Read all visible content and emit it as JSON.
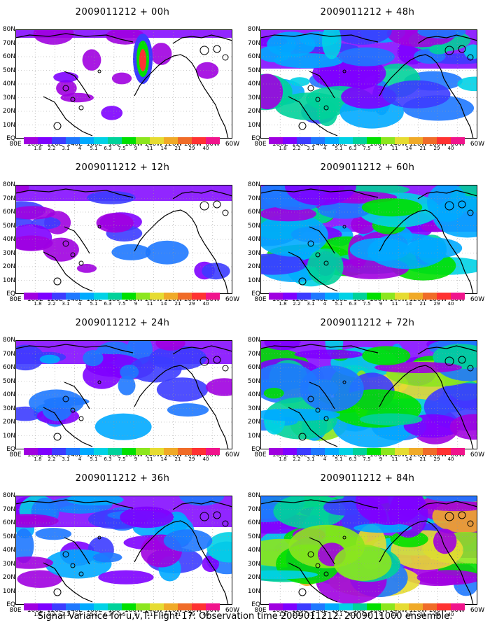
{
  "footer": "Signal Variance for u,v,T. Flight 17. Observation time 2009011212. 2009011000 ensemble.",
  "colorbar": {
    "labels": [
      "1.8",
      "2.2",
      "3.1",
      "4",
      "5.1",
      "6.3",
      "7.5",
      "9",
      "11",
      "14",
      "21",
      "29",
      "40"
    ],
    "colors": [
      "#a000e0",
      "#7e00ff",
      "#3c3cff",
      "#1e78ff",
      "#00aaff",
      "#00d2e6",
      "#00d29a",
      "#00e000",
      "#8ce61e",
      "#e6dc32",
      "#f0aa28",
      "#f06c28",
      "#ff3232",
      "#f0148c"
    ]
  },
  "axes": {
    "lat_labels": [
      "80N",
      "70N",
      "60N",
      "50N",
      "40N",
      "30N",
      "20N",
      "10N",
      "EQ"
    ],
    "lon_labels": [
      "80E",
      "100E",
      "120E",
      "140E",
      "160E",
      "180",
      "160W",
      "140W",
      "120W",
      "100W",
      "80W",
      "60W"
    ]
  },
  "chart_data": [
    {
      "type": "heatmap",
      "title": "2009011212 + 00h",
      "lead_hours": 0,
      "x_range": [
        "80E",
        "60W"
      ],
      "y_range": [
        "EQ",
        "80N"
      ]
    },
    {
      "type": "heatmap",
      "title": "2009011212 + 12h",
      "lead_hours": 12,
      "x_range": [
        "80E",
        "60W"
      ],
      "y_range": [
        "EQ",
        "80N"
      ]
    },
    {
      "type": "heatmap",
      "title": "2009011212 + 24h",
      "lead_hours": 24,
      "x_range": [
        "80E",
        "60W"
      ],
      "y_range": [
        "EQ",
        "80N"
      ]
    },
    {
      "type": "heatmap",
      "title": "2009011212 + 36h",
      "lead_hours": 36,
      "x_range": [
        "80E",
        "60W"
      ],
      "y_range": [
        "EQ",
        "80N"
      ]
    },
    {
      "type": "heatmap",
      "title": "2009011212 + 48h",
      "lead_hours": 48,
      "x_range": [
        "80E",
        "60W"
      ],
      "y_range": [
        "EQ",
        "80N"
      ]
    },
    {
      "type": "heatmap",
      "title": "2009011212 + 60h",
      "lead_hours": 60,
      "x_range": [
        "80E",
        "60W"
      ],
      "y_range": [
        "EQ",
        "80N"
      ]
    },
    {
      "type": "heatmap",
      "title": "2009011212 + 72h",
      "lead_hours": 72,
      "x_range": [
        "80E",
        "60W"
      ],
      "y_range": [
        "EQ",
        "80N"
      ]
    },
    {
      "type": "heatmap",
      "title": "2009011212 + 84h",
      "lead_hours": 84,
      "x_range": [
        "80E",
        "60W"
      ],
      "y_range": [
        "EQ",
        "80N"
      ]
    }
  ]
}
